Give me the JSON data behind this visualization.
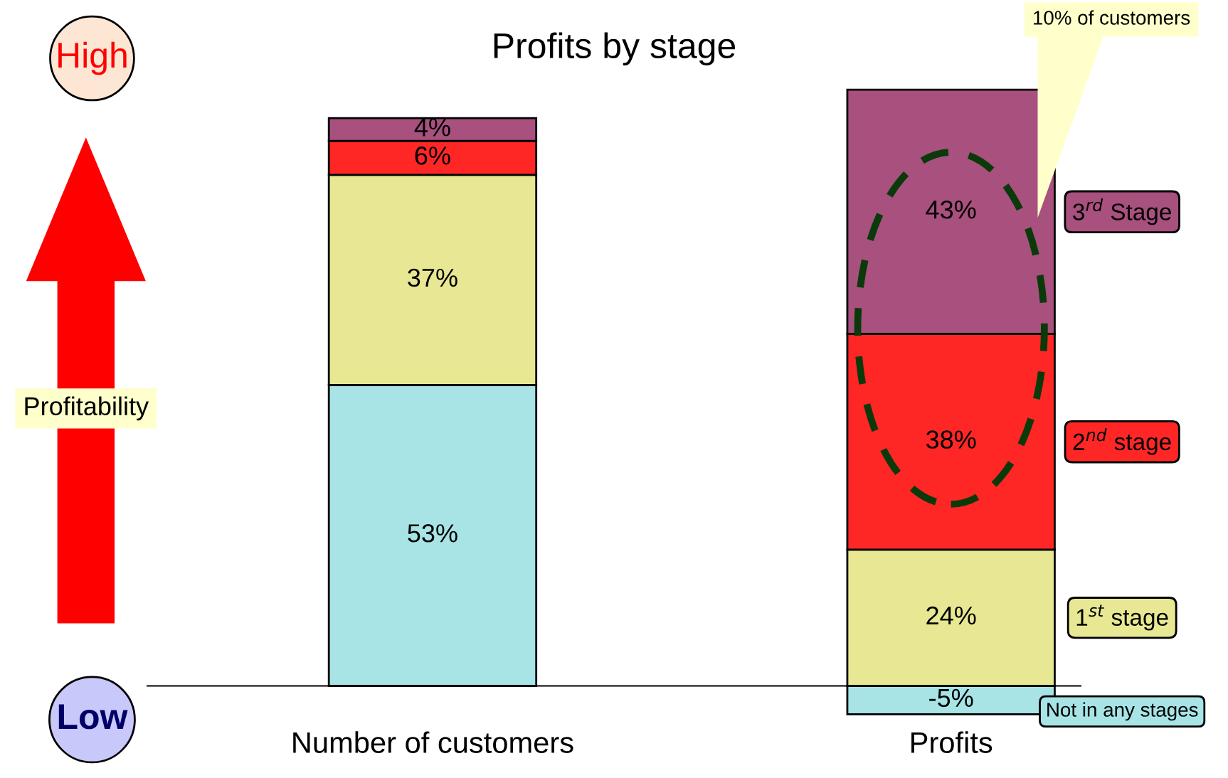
{
  "chart_data": {
    "type": "bar",
    "title": "Profits by stage",
    "stacked": true,
    "categories": [
      "Number of customers",
      "Profits"
    ],
    "series": [
      {
        "name": "Not in any stages",
        "color": "#a8e4e6",
        "values": [
          53,
          -5
        ],
        "value_labels": [
          "53%",
          "-5%"
        ]
      },
      {
        "name": "1$^{st}$ stage",
        "color": "#e8e894",
        "values": [
          37,
          24
        ],
        "value_labels": [
          "37%",
          "24%"
        ]
      },
      {
        "name": "2$^{nd}$ stage",
        "color": "#ff2626",
        "values": [
          6,
          38
        ],
        "value_labels": [
          "6%",
          "38%"
        ]
      },
      {
        "name": "3$^{rd}$ Stage",
        "color": "#a8507e",
        "values": [
          4,
          43
        ],
        "value_labels": [
          "4%",
          "43%"
        ]
      }
    ],
    "annotations": [
      "High",
      "Low",
      "Profitability",
      "10% of customers"
    ],
    "grid": false,
    "legend": "right"
  }
}
